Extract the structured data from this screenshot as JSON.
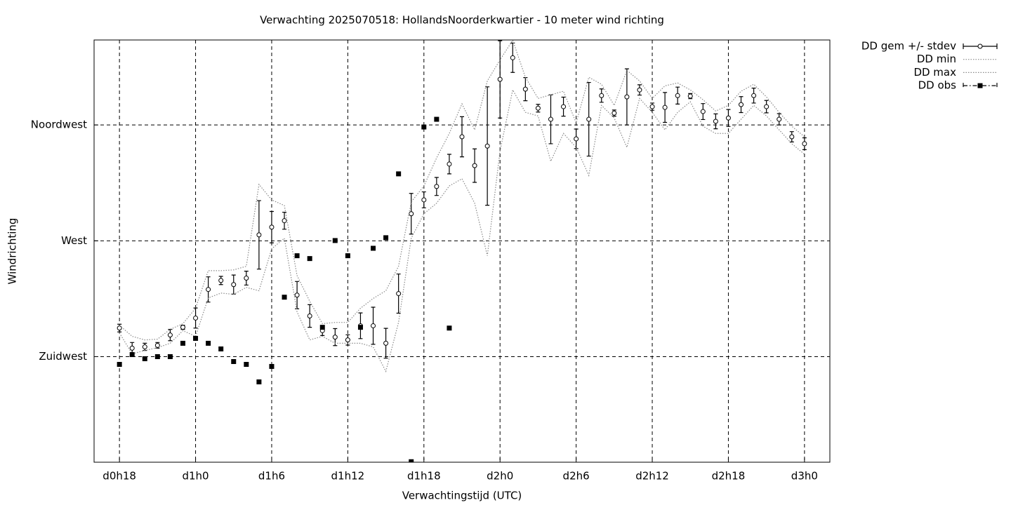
{
  "chart_data": {
    "type": "errorbar-line",
    "title": "Verwachting 2025070518: HollandsNoorderkwartier - 10 meter wind richting",
    "x_label": "Verwachtingstijd (UTC)",
    "y_label": "Windrichting",
    "xlim": [
      16,
      74
    ],
    "ylim": [
      184,
      348
    ],
    "xticks": [
      {
        "value": 18,
        "label": "d0h18"
      },
      {
        "value": 24,
        "label": "d1h0"
      },
      {
        "value": 30,
        "label": "d1h6"
      },
      {
        "value": 36,
        "label": "d1h12"
      },
      {
        "value": 42,
        "label": "d1h18"
      },
      {
        "value": 48,
        "label": "d2h0"
      },
      {
        "value": 54,
        "label": "d2h6"
      },
      {
        "value": 60,
        "label": "d2h12"
      },
      {
        "value": 66,
        "label": "d2h18"
      },
      {
        "value": 72,
        "label": "d3h0"
      }
    ],
    "yticks": [
      {
        "value": 225,
        "label": "Zuidwest"
      },
      {
        "value": 270,
        "label": "West"
      },
      {
        "value": 315,
        "label": "Noordwest"
      }
    ],
    "grid": true,
    "legend": "outside-right-top",
    "x": [
      18,
      19,
      20,
      21,
      22,
      23,
      24,
      25,
      26,
      27,
      28,
      29,
      30,
      31,
      32,
      33,
      34,
      35,
      36,
      37,
      38,
      39,
      40,
      41,
      42,
      43,
      44,
      45,
      46,
      47,
      48,
      49,
      50,
      51,
      52,
      53,
      54,
      55,
      56,
      57,
      58,
      59,
      60,
      61,
      62,
      63,
      64,
      65,
      66,
      67,
      68,
      69,
      70,
      71,
      72
    ],
    "series": [
      {
        "name": "DD gem +/- stdev",
        "color": "#000000",
        "style": "errorbars",
        "values": [
          236.1,
          228.3,
          228.8,
          229.4,
          233.4,
          236.4,
          240.0,
          251.1,
          254.6,
          253.0,
          255.5,
          272.3,
          275.3,
          277.8,
          248.9,
          240.8,
          235.1,
          232.6,
          231.5,
          237.0,
          237.0,
          230.2,
          249.5,
          280.5,
          285.9,
          291.1,
          299.8,
          310.4,
          299.2,
          306.8,
          332.7,
          341.1,
          328.9,
          321.5,
          317.2,
          322.1,
          309.6,
          317.2,
          326.4,
          319.6,
          325.9,
          328.6,
          322.1,
          321.8,
          326.4,
          326.2,
          320.2,
          316.4,
          317.7,
          322.9,
          326.4,
          322.1,
          317.2,
          310.4,
          307.7
        ],
        "errors": [
          1.5,
          2.2,
          1.4,
          1.1,
          2.2,
          0.8,
          3.9,
          4.9,
          1.6,
          3.7,
          2.7,
          13.3,
          6.1,
          3.3,
          5.3,
          4.4,
          1.9,
          3.3,
          2.0,
          5.0,
          7.2,
          5.8,
          7.6,
          7.9,
          3.1,
          3.5,
          3.8,
          7.8,
          6.5,
          23.0,
          15.0,
          5.7,
          4.5,
          1.5,
          9.5,
          3.7,
          3.8,
          14.3,
          2.6,
          1.2,
          10.9,
          2.0,
          1.4,
          5.8,
          3.3,
          1.0,
          3.1,
          2.9,
          3.3,
          3.1,
          2.9,
          2.4,
          2.2,
          2.0,
          2.3
        ]
      },
      {
        "name": "DD min",
        "color": "#8a8a8a",
        "style": "dotted",
        "values": [
          234.2,
          226.1,
          227.4,
          228.5,
          230.2,
          235.1,
          232.9,
          247.8,
          249.7,
          249.2,
          251.9,
          250.6,
          266.9,
          271.0,
          242.4,
          231.5,
          232.9,
          230.2,
          230.2,
          230.2,
          228.8,
          219.3,
          238.3,
          271.0,
          280.5,
          284.6,
          291.3,
          294.1,
          284.6,
          264.2,
          304.9,
          328.6,
          319.9,
          318.5,
          300.9,
          311.7,
          306.3,
          295.4,
          322.6,
          317.7,
          306.3,
          325.3,
          319.9,
          313.1,
          319.9,
          324.0,
          314.5,
          311.7,
          311.7,
          317.2,
          322.6,
          318.5,
          313.1,
          307.7,
          303.6
        ]
      },
      {
        "name": "DD max",
        "color": "#8a8a8a",
        "style": "dotted",
        "values": [
          237.2,
          232.9,
          231.5,
          231.8,
          235.6,
          237.8,
          243.8,
          258.4,
          258.4,
          258.7,
          260.1,
          291.9,
          285.9,
          283.7,
          256.5,
          246.5,
          237.8,
          238.3,
          238.3,
          243.8,
          247.6,
          250.6,
          260.1,
          285.1,
          291.3,
          302.2,
          311.7,
          323.2,
          313.1,
          332.1,
          340.3,
          347.9,
          333.5,
          325.3,
          326.7,
          328.1,
          315.8,
          333.5,
          330.8,
          322.6,
          336.2,
          332.1,
          325.3,
          330.2,
          331.3,
          328.6,
          324.8,
          320.4,
          322.6,
          328.1,
          330.8,
          325.9,
          319.9,
          314.5,
          310.4
        ]
      },
      {
        "name": "DD obs",
        "color": "#000000",
        "style": "points",
        "values": [
          222.0,
          225.8,
          224.2,
          225.0,
          225.0,
          230.2,
          232.1,
          230.2,
          228.0,
          223.1,
          222.0,
          215.2,
          221.2,
          248.1,
          264.2,
          263.1,
          236.4,
          270.1,
          264.2,
          236.4,
          267.1,
          271.2,
          296.0,
          184.2,
          314.2,
          317.2,
          236.1,
          null,
          null,
          null,
          null,
          null,
          null,
          null,
          null,
          null,
          null,
          null,
          null,
          null,
          null,
          null,
          null,
          null,
          null,
          null,
          null,
          null,
          null,
          null,
          null,
          null,
          null,
          null,
          null
        ]
      }
    ]
  }
}
